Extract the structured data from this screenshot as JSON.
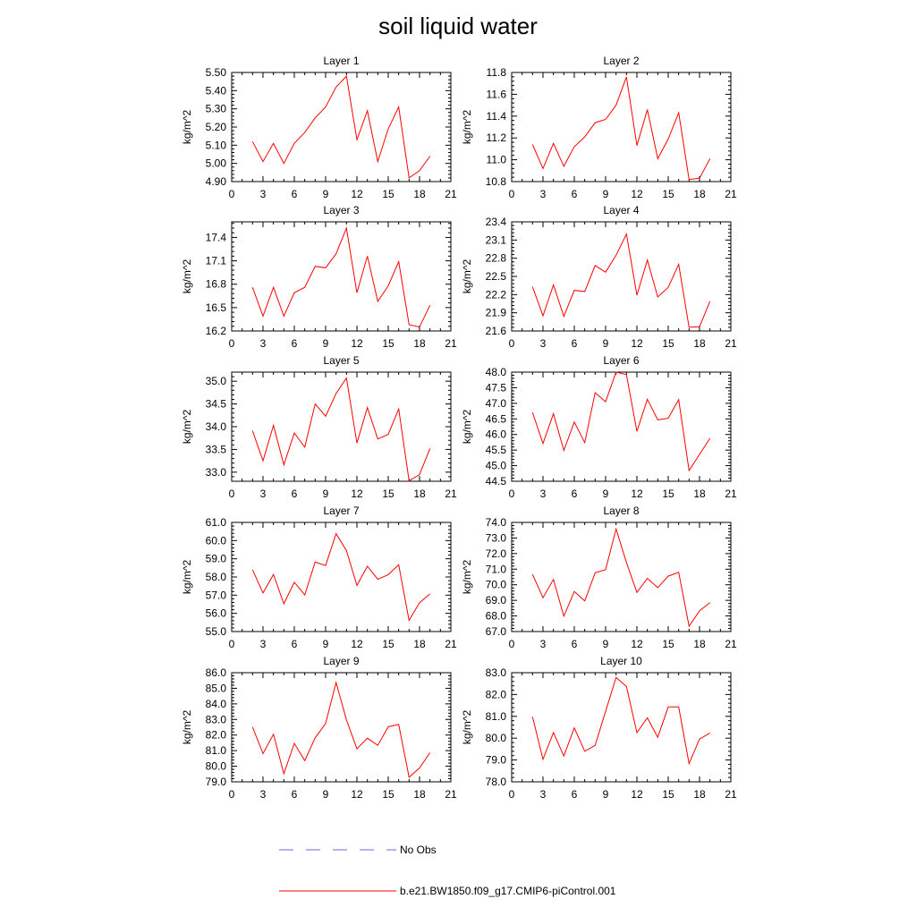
{
  "title": "soil liquid water",
  "colors": {
    "series": "#ff0000",
    "obs": "#6b6bd6",
    "axis": "#000000"
  },
  "legend": [
    {
      "label": "No Obs",
      "style": "dashed",
      "color": "#6b6bd6"
    },
    {
      "label": "b.e21.BW1850.f09_g17.CMIP6-piControl.001",
      "style": "solid",
      "color": "#ff0000"
    }
  ],
  "chart_data": [
    {
      "type": "line",
      "title": "Layer 1",
      "ylabel": "kg/m^2",
      "xlim": [
        0,
        21
      ],
      "ylim": [
        4.9,
        5.5
      ],
      "xticks": [
        "0",
        "3",
        "6",
        "9",
        "12",
        "15",
        "18",
        "21"
      ],
      "yticks": [
        "4.90",
        "5.00",
        "5.10",
        "5.20",
        "5.30",
        "5.40",
        "5.50"
      ],
      "series": [
        {
          "name": "b.e21.BW1850.f09_g17.CMIP6-piControl.001",
          "x": [
            2,
            3,
            4,
            5,
            6,
            7,
            8,
            9,
            10,
            11,
            12,
            13,
            14,
            15,
            16,
            17,
            18,
            19
          ],
          "y": [
            5.12,
            5.01,
            5.11,
            5.0,
            5.11,
            5.17,
            5.25,
            5.31,
            5.42,
            5.48,
            5.13,
            5.29,
            5.01,
            5.19,
            5.31,
            4.92,
            4.96,
            5.04
          ]
        }
      ]
    },
    {
      "type": "line",
      "title": "Layer 2",
      "ylabel": "kg/m^2",
      "xlim": [
        0,
        21
      ],
      "ylim": [
        10.8,
        11.8
      ],
      "xticks": [
        "0",
        "3",
        "6",
        "9",
        "12",
        "15",
        "18",
        "21"
      ],
      "yticks": [
        "10.8",
        "11.0",
        "11.2",
        "11.4",
        "11.6",
        "11.8"
      ],
      "series": [
        {
          "name": "b.e21.BW1850.f09_g17.CMIP6-piControl.001",
          "x": [
            2,
            3,
            4,
            5,
            6,
            7,
            8,
            9,
            10,
            11,
            12,
            13,
            14,
            15,
            16,
            17,
            18,
            19
          ],
          "y": [
            11.14,
            10.92,
            11.15,
            10.94,
            11.12,
            11.21,
            11.34,
            11.37,
            11.5,
            11.76,
            11.13,
            11.46,
            11.01,
            11.19,
            11.43,
            10.82,
            10.83,
            11.01
          ]
        }
      ]
    },
    {
      "type": "line",
      "title": "Layer 3",
      "ylabel": "kg/m^2",
      "xlim": [
        0,
        21
      ],
      "ylim": [
        16.2,
        17.6
      ],
      "xticks": [
        "0",
        "3",
        "6",
        "9",
        "12",
        "15",
        "18",
        "21"
      ],
      "yticks": [
        "16.2",
        "16.5",
        "16.8",
        "17.1",
        "17.4"
      ],
      "series": [
        {
          "name": "b.e21.BW1850.f09_g17.CMIP6-piControl.001",
          "x": [
            2,
            3,
            4,
            5,
            6,
            7,
            8,
            9,
            10,
            11,
            12,
            13,
            14,
            15,
            16,
            17,
            18,
            19
          ],
          "y": [
            16.76,
            16.39,
            16.76,
            16.39,
            16.69,
            16.76,
            17.03,
            17.01,
            17.19,
            17.52,
            16.69,
            17.16,
            16.58,
            16.78,
            17.09,
            16.28,
            16.25,
            16.53
          ]
        }
      ]
    },
    {
      "type": "line",
      "title": "Layer 4",
      "ylabel": "kg/m^2",
      "xlim": [
        0,
        21
      ],
      "ylim": [
        21.6,
        23.4
      ],
      "xticks": [
        "0",
        "3",
        "6",
        "9",
        "12",
        "15",
        "18",
        "21"
      ],
      "yticks": [
        "21.6",
        "21.9",
        "22.2",
        "22.5",
        "22.8",
        "23.1",
        "23.4"
      ],
      "series": [
        {
          "name": "b.e21.BW1850.f09_g17.CMIP6-piControl.001",
          "x": [
            2,
            3,
            4,
            5,
            6,
            7,
            8,
            9,
            10,
            11,
            12,
            13,
            14,
            15,
            16,
            17,
            18,
            19
          ],
          "y": [
            22.33,
            21.85,
            22.36,
            21.84,
            22.27,
            22.25,
            22.68,
            22.57,
            22.85,
            23.2,
            22.19,
            22.77,
            22.16,
            22.32,
            22.7,
            21.66,
            21.67,
            22.09
          ]
        }
      ]
    },
    {
      "type": "line",
      "title": "Layer 5",
      "ylabel": "kg/m^2",
      "xlim": [
        0,
        21
      ],
      "ylim": [
        32.8,
        35.2
      ],
      "xticks": [
        "0",
        "3",
        "6",
        "9",
        "12",
        "15",
        "18",
        "21"
      ],
      "yticks": [
        "33.0",
        "33.5",
        "34.0",
        "34.5",
        "35.0"
      ],
      "series": [
        {
          "name": "b.e21.BW1850.f09_g17.CMIP6-piControl.001",
          "x": [
            2,
            3,
            4,
            5,
            6,
            7,
            8,
            9,
            10,
            11,
            12,
            13,
            14,
            15,
            16,
            17,
            18,
            19
          ],
          "y": [
            33.91,
            33.25,
            34.03,
            33.16,
            33.86,
            33.55,
            34.5,
            34.23,
            34.73,
            35.07,
            33.64,
            34.42,
            33.73,
            33.83,
            34.39,
            32.81,
            32.95,
            33.52
          ]
        }
      ]
    },
    {
      "type": "line",
      "title": "Layer 6",
      "ylabel": "kg/m^2",
      "xlim": [
        0,
        21
      ],
      "ylim": [
        44.5,
        48.0
      ],
      "xticks": [
        "0",
        "3",
        "6",
        "9",
        "12",
        "15",
        "18",
        "21"
      ],
      "yticks": [
        "44.5",
        "45.0",
        "45.5",
        "46.0",
        "46.5",
        "47.0",
        "47.5",
        "48.0"
      ],
      "series": [
        {
          "name": "b.e21.BW1850.f09_g17.CMIP6-piControl.001",
          "x": [
            2,
            3,
            4,
            5,
            6,
            7,
            8,
            9,
            10,
            11,
            12,
            13,
            14,
            15,
            16,
            17,
            18,
            19
          ],
          "y": [
            46.71,
            45.71,
            46.67,
            45.49,
            46.4,
            45.74,
            47.34,
            47.05,
            48.0,
            47.92,
            46.1,
            47.13,
            46.47,
            46.52,
            47.12,
            44.84,
            45.36,
            45.88
          ]
        }
      ]
    },
    {
      "type": "line",
      "title": "Layer 7",
      "ylabel": "kg/m^2",
      "xlim": [
        0,
        21
      ],
      "ylim": [
        55.0,
        61.0
      ],
      "xticks": [
        "0",
        "3",
        "6",
        "9",
        "12",
        "15",
        "18",
        "21"
      ],
      "yticks": [
        "55.0",
        "56.0",
        "57.0",
        "58.0",
        "59.0",
        "60.0",
        "61.0"
      ],
      "series": [
        {
          "name": "b.e21.BW1850.f09_g17.CMIP6-piControl.001",
          "x": [
            2,
            3,
            4,
            5,
            6,
            7,
            8,
            9,
            10,
            11,
            12,
            13,
            14,
            15,
            16,
            17,
            18,
            19
          ],
          "y": [
            58.4,
            57.12,
            58.14,
            56.53,
            57.71,
            57.01,
            58.82,
            58.63,
            60.38,
            59.45,
            57.54,
            58.59,
            57.87,
            58.13,
            58.67,
            55.61,
            56.59,
            57.07
          ]
        }
      ]
    },
    {
      "type": "line",
      "title": "Layer 8",
      "ylabel": "kg/m^2",
      "xlim": [
        0,
        21
      ],
      "ylim": [
        67.0,
        74.0
      ],
      "xticks": [
        "0",
        "3",
        "6",
        "9",
        "12",
        "15",
        "18",
        "21"
      ],
      "yticks": [
        "67.0",
        "68.0",
        "69.0",
        "70.0",
        "71.0",
        "72.0",
        "73.0",
        "74.0"
      ],
      "series": [
        {
          "name": "b.e21.BW1850.f09_g17.CMIP6-piControl.001",
          "x": [
            2,
            3,
            4,
            5,
            6,
            7,
            8,
            9,
            10,
            11,
            12,
            13,
            14,
            15,
            16,
            17,
            18,
            19
          ],
          "y": [
            70.67,
            69.17,
            70.34,
            67.98,
            69.57,
            68.96,
            70.77,
            70.97,
            73.58,
            71.43,
            69.51,
            70.41,
            69.82,
            70.55,
            70.8,
            67.34,
            68.33,
            68.86
          ]
        }
      ]
    },
    {
      "type": "line",
      "title": "Layer 9",
      "ylabel": "kg/m^2",
      "xlim": [
        0,
        21
      ],
      "ylim": [
        79.0,
        86.0
      ],
      "xticks": [
        "0",
        "3",
        "6",
        "9",
        "12",
        "15",
        "18",
        "21"
      ],
      "yticks": [
        "79.0",
        "80.0",
        "81.0",
        "82.0",
        "83.0",
        "84.0",
        "85.0",
        "86.0"
      ],
      "series": [
        {
          "name": "b.e21.BW1850.f09_g17.CMIP6-piControl.001",
          "x": [
            2,
            3,
            4,
            5,
            6,
            7,
            8,
            9,
            10,
            11,
            12,
            13,
            14,
            15,
            16,
            17,
            18,
            19
          ],
          "y": [
            82.52,
            80.81,
            82.05,
            79.52,
            81.47,
            80.36,
            81.82,
            82.74,
            85.37,
            82.97,
            81.12,
            81.8,
            81.34,
            82.53,
            82.68,
            79.29,
            79.89,
            80.87
          ]
        }
      ]
    },
    {
      "type": "line",
      "title": "Layer 10",
      "ylabel": "kg/m^2",
      "xlim": [
        0,
        21
      ],
      "ylim": [
        78.0,
        83.0
      ],
      "xticks": [
        "0",
        "3",
        "6",
        "9",
        "12",
        "15",
        "18",
        "21"
      ],
      "yticks": [
        "78.0",
        "79.0",
        "80.0",
        "81.0",
        "82.0",
        "83.0"
      ],
      "series": [
        {
          "name": "b.e21.BW1850.f09_g17.CMIP6-piControl.001",
          "x": [
            2,
            3,
            4,
            5,
            6,
            7,
            8,
            9,
            10,
            11,
            12,
            13,
            14,
            15,
            16,
            17,
            18,
            19
          ],
          "y": [
            80.98,
            79.03,
            80.26,
            79.18,
            80.47,
            79.4,
            79.67,
            81.23,
            82.78,
            82.37,
            80.25,
            80.93,
            80.04,
            81.43,
            81.43,
            78.83,
            79.96,
            80.23
          ]
        }
      ]
    }
  ]
}
